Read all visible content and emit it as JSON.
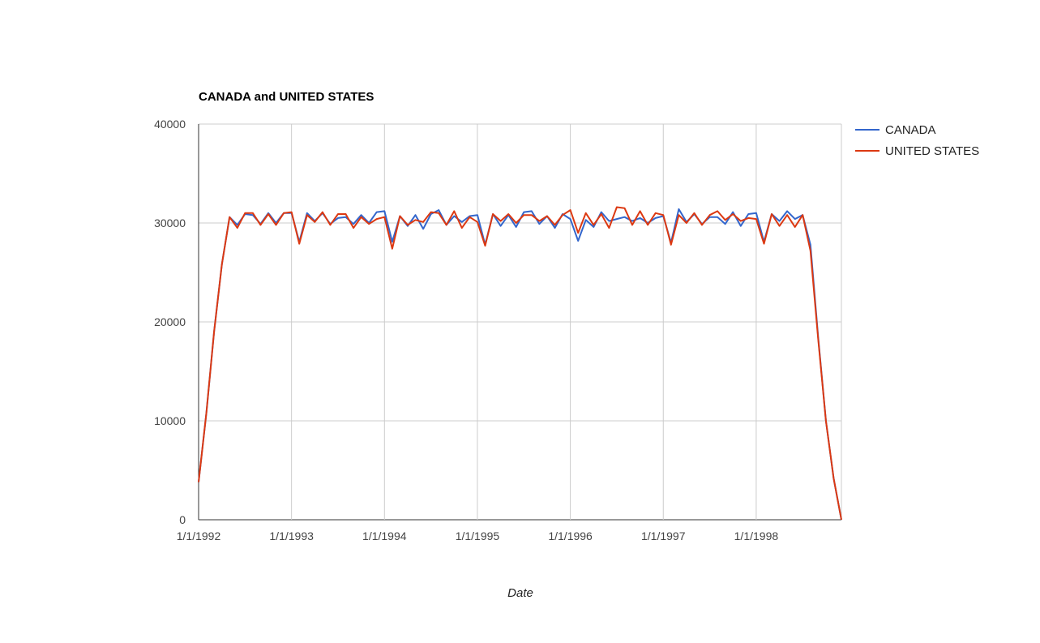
{
  "chart_data": {
    "type": "line",
    "title": "CANADA and UNITED STATES",
    "xlabel": "Date",
    "ylabel": "",
    "ylim": [
      0,
      40000
    ],
    "yticks": [
      "0",
      "10000",
      "20000",
      "30000",
      "40000"
    ],
    "xlim": [
      "1992-01-01",
      "1998-12-01"
    ],
    "xticks": [
      {
        "date": "1992-01-01",
        "label": "1/1/1992"
      },
      {
        "date": "1993-01-01",
        "label": "1/1/1993"
      },
      {
        "date": "1994-01-01",
        "label": "1/1/1994"
      },
      {
        "date": "1995-01-01",
        "label": "1/1/1995"
      },
      {
        "date": "1996-01-01",
        "label": "1/1/1996"
      },
      {
        "date": "1997-01-01",
        "label": "1/1/1997"
      },
      {
        "date": "1998-01-01",
        "label": "1/1/1998"
      }
    ],
    "grid": true,
    "legend_position": "right",
    "x": [
      "1992-01",
      "1992-02",
      "1992-03",
      "1992-04",
      "1992-05",
      "1992-06",
      "1992-07",
      "1992-08",
      "1992-09",
      "1992-10",
      "1992-11",
      "1992-12",
      "1993-01",
      "1993-02",
      "1993-03",
      "1993-04",
      "1993-05",
      "1993-06",
      "1993-07",
      "1993-08",
      "1993-09",
      "1993-10",
      "1993-11",
      "1993-12",
      "1994-01",
      "1994-02",
      "1994-03",
      "1994-04",
      "1994-05",
      "1994-06",
      "1994-07",
      "1994-08",
      "1994-09",
      "1994-10",
      "1994-11",
      "1994-12",
      "1995-01",
      "1995-02",
      "1995-03",
      "1995-04",
      "1995-05",
      "1995-06",
      "1995-07",
      "1995-08",
      "1995-09",
      "1995-10",
      "1995-11",
      "1995-12",
      "1996-01",
      "1996-02",
      "1996-03",
      "1996-04",
      "1996-05",
      "1996-06",
      "1996-07",
      "1996-08",
      "1996-09",
      "1996-10",
      "1996-11",
      "1996-12",
      "1997-01",
      "1997-02",
      "1997-03",
      "1997-04",
      "1997-05",
      "1997-06",
      "1997-07",
      "1997-08",
      "1997-09",
      "1997-10",
      "1997-11",
      "1997-12",
      "1998-01",
      "1998-02",
      "1998-03",
      "1998-04",
      "1998-05",
      "1998-06",
      "1998-07",
      "1998-08",
      "1998-09",
      "1998-10",
      "1998-11",
      "1998-12"
    ],
    "series": [
      {
        "name": "CANADA",
        "color": "#3366cc",
        "values": [
          3800,
          10800,
          19000,
          25800,
          30600,
          29800,
          30900,
          30800,
          29900,
          31000,
          30000,
          31000,
          31000,
          28100,
          31000,
          30200,
          31000,
          29900,
          30500,
          30600,
          29900,
          30800,
          30000,
          31100,
          31200,
          28100,
          30700,
          29700,
          30800,
          29400,
          30900,
          31300,
          29800,
          30700,
          30100,
          30700,
          30800,
          27800,
          30900,
          29700,
          30800,
          29600,
          31100,
          31200,
          29900,
          30700,
          29500,
          30900,
          30400,
          28200,
          30300,
          29600,
          31100,
          30200,
          30400,
          30600,
          30200,
          30500,
          30000,
          30500,
          30700,
          28000,
          31400,
          30100,
          30900,
          29900,
          30600,
          30600,
          29900,
          31100,
          29700,
          30900,
          31000,
          28100,
          30900,
          30200,
          31200,
          30400,
          30800,
          27800,
          18500,
          10000,
          4200,
          0
        ]
      },
      {
        "name": "UNITED STATES",
        "color": "#dc3912",
        "values": [
          3800,
          10800,
          19000,
          25800,
          30600,
          29500,
          31000,
          31000,
          29800,
          30900,
          29800,
          31000,
          31100,
          27900,
          30800,
          30100,
          31100,
          29800,
          30900,
          30900,
          29500,
          30600,
          29900,
          30400,
          30600,
          27400,
          30700,
          29800,
          30300,
          30100,
          31100,
          31000,
          29800,
          31200,
          29500,
          30600,
          30100,
          27700,
          30900,
          30200,
          30900,
          30000,
          30800,
          30800,
          30200,
          30700,
          29800,
          30800,
          31300,
          29000,
          31000,
          29800,
          30900,
          29500,
          31600,
          31500,
          29800,
          31200,
          29800,
          31000,
          30800,
          27800,
          30800,
          30000,
          31000,
          29800,
          30800,
          31200,
          30300,
          30900,
          30200,
          30500,
          30400,
          27900,
          30900,
          29700,
          30800,
          29600,
          30800,
          27200,
          18300,
          10000,
          4200,
          0
        ]
      }
    ]
  }
}
